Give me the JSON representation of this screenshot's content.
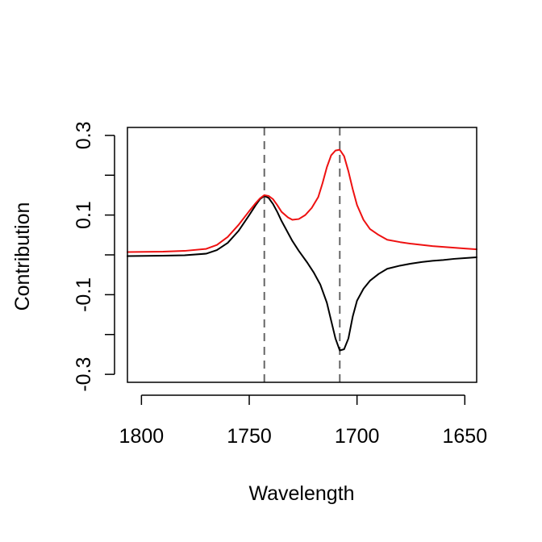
{
  "chart_data": {
    "type": "line",
    "title": "",
    "xlabel": "Wavelength",
    "ylabel": "Contribution",
    "xlim": [
      1806.5,
      1644.5
    ],
    "ylim": [
      -0.32,
      0.32
    ],
    "x_reversed": true,
    "xticks": [
      1800,
      1750,
      1700,
      1650
    ],
    "xtick_labels": [
      "1800",
      "1750",
      "1700",
      "1650"
    ],
    "yticks": [
      -0.3,
      -0.2,
      -0.1,
      0.0,
      0.1,
      0.2,
      0.3
    ],
    "ytick_labels": [
      "-0.3",
      "",
      "-0.1",
      "",
      "0.1",
      "",
      "0.3"
    ],
    "grid": false,
    "legend": "none",
    "vlines": [
      1743,
      1708
    ],
    "vline_color": "#666666",
    "series": [
      {
        "color": "#000000",
        "x": [
          1806.5,
          1790,
          1780,
          1770,
          1765,
          1760,
          1755,
          1750,
          1747,
          1745,
          1743,
          1741,
          1739,
          1737,
          1735,
          1732,
          1730,
          1727,
          1723,
          1720,
          1717,
          1714,
          1712,
          1710,
          1708,
          1706,
          1704,
          1702,
          1700,
          1697,
          1694,
          1690,
          1686,
          1680,
          1675,
          1670,
          1665,
          1660,
          1655,
          1650,
          1644.5
        ],
        "y": [
          -0.003,
          -0.002,
          -0.001,
          0.003,
          0.012,
          0.03,
          0.06,
          0.1,
          0.125,
          0.14,
          0.148,
          0.143,
          0.128,
          0.108,
          0.085,
          0.055,
          0.035,
          0.01,
          -0.02,
          -0.045,
          -0.075,
          -0.12,
          -0.165,
          -0.21,
          -0.24,
          -0.237,
          -0.21,
          -0.155,
          -0.115,
          -0.085,
          -0.065,
          -0.048,
          -0.035,
          -0.027,
          -0.022,
          -0.018,
          -0.015,
          -0.013,
          -0.01,
          -0.008,
          -0.006
        ]
      },
      {
        "color": "#ee1111",
        "x": [
          1806.5,
          1790,
          1780,
          1770,
          1765,
          1760,
          1755,
          1750,
          1747,
          1745,
          1743,
          1741,
          1739,
          1737,
          1735,
          1732,
          1730,
          1727,
          1724,
          1721,
          1718,
          1716,
          1714,
          1712,
          1710,
          1708,
          1706,
          1704,
          1702,
          1700,
          1697,
          1694,
          1690,
          1686,
          1680,
          1675,
          1670,
          1665,
          1660,
          1655,
          1650,
          1644.5
        ],
        "y": [
          0.007,
          0.008,
          0.01,
          0.015,
          0.025,
          0.045,
          0.075,
          0.11,
          0.13,
          0.142,
          0.15,
          0.148,
          0.14,
          0.125,
          0.108,
          0.094,
          0.088,
          0.09,
          0.1,
          0.118,
          0.145,
          0.18,
          0.22,
          0.25,
          0.262,
          0.264,
          0.248,
          0.21,
          0.165,
          0.125,
          0.088,
          0.065,
          0.05,
          0.038,
          0.032,
          0.028,
          0.025,
          0.022,
          0.02,
          0.018,
          0.016,
          0.014
        ]
      }
    ]
  }
}
